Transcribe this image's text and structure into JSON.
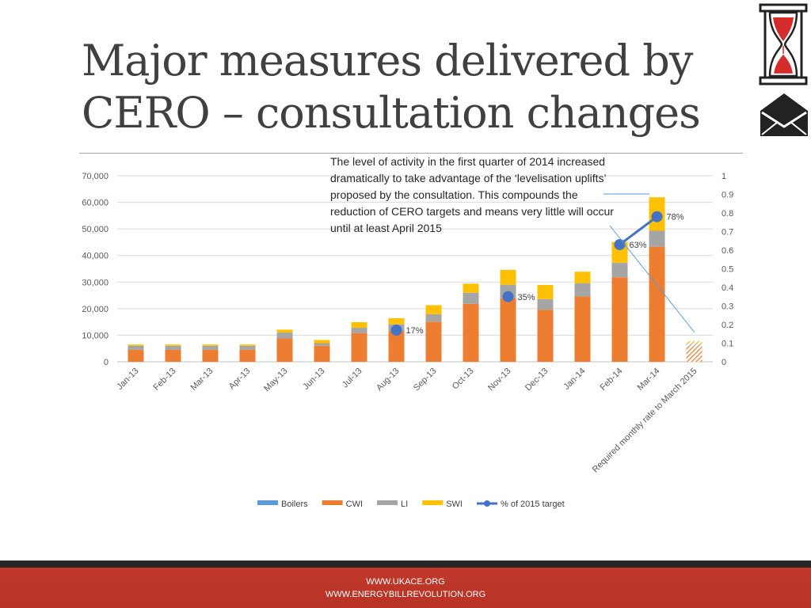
{
  "slide": {
    "title_line1": "Major measures delivered by",
    "title_line2": "CERO – consultation changes",
    "annotation": "The level of activity in the first quarter of 2014 increased dramatically to take advantage of the ‘levelisation uplifts’ proposed by the consultation. This compounds the reduction of CERO targets and means very little will occur until at least April 2015",
    "footer": {
      "link1": "WWW.UKACE.ORG",
      "link2": "WWW.ENERGYBILLREVOLUTION.ORG"
    },
    "icons": {
      "top": "hourglass-icon",
      "bottom": "envelope-house-icon"
    }
  },
  "chart_data": {
    "type": "bar",
    "stacked": true,
    "categories": [
      "Jan-13",
      "Feb-13",
      "Mar-13",
      "Apr-13",
      "May-13",
      "Jun-13",
      "Jul-13",
      "Aug-13",
      "Sep-13",
      "Oct-13",
      "Nov-13",
      "Dec-13",
      "Jan-14",
      "Feb-14",
      "Mar-14",
      "Required monthly rate to March 2015"
    ],
    "series": [
      {
        "name": "Boilers",
        "color": "#5b9bd5",
        "values": [
          0,
          0,
          0,
          0,
          0,
          0,
          0,
          0,
          0,
          0,
          0,
          0,
          0,
          0,
          0,
          0
        ]
      },
      {
        "name": "CWI",
        "color": "#ed7d31",
        "values": [
          4500,
          4500,
          4500,
          4500,
          8800,
          6000,
          10800,
          11600,
          15100,
          21800,
          24000,
          19600,
          24600,
          31800,
          43300,
          5800
        ]
      },
      {
        "name": "LI",
        "color": "#a5a5a5",
        "values": [
          1500,
          1500,
          1500,
          1500,
          2200,
          1000,
          2000,
          2500,
          2800,
          4200,
          5000,
          4000,
          5000,
          5500,
          6000,
          1000
        ]
      },
      {
        "name": "SWI",
        "color": "#ffc000",
        "values": [
          500,
          500,
          500,
          500,
          1100,
          1200,
          2100,
          2300,
          3400,
          3400,
          5600,
          5300,
          4300,
          7800,
          12600,
          1000
        ]
      }
    ],
    "line_series": {
      "name": "% of 2015 target",
      "color": "#4472c4",
      "axis": "right",
      "points": [
        {
          "category": "Aug-13",
          "value": 0.17,
          "label": "17%"
        },
        {
          "category": "Nov-13",
          "value": 0.35,
          "label": "35%"
        },
        {
          "category": "Feb-14",
          "value": 0.63,
          "label": "63%"
        },
        {
          "category": "Mar-14",
          "value": 0.78,
          "label": "78%"
        }
      ]
    },
    "y_left": {
      "min": 0,
      "max": 70000,
      "ticks": [
        "0",
        "10,000",
        "20,000",
        "30,000",
        "40,000",
        "50,000",
        "60,000",
        "70,000"
      ]
    },
    "y_right": {
      "min": 0,
      "max": 1,
      "ticks": [
        "0",
        "0.1",
        "0.2",
        "0.3",
        "0.4",
        "0.5",
        "0.6",
        "0.7",
        "0.8",
        "0.9",
        "1"
      ]
    },
    "grid": true,
    "legend_position": "bottom",
    "hatched_category": "Required monthly rate to March 2015"
  }
}
